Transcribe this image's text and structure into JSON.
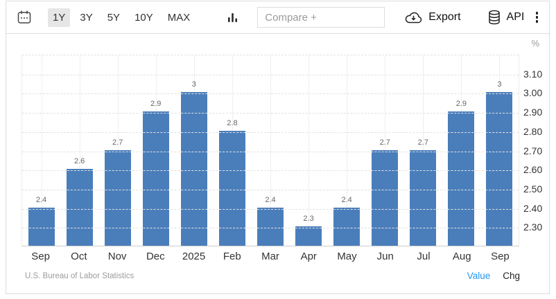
{
  "toolbar": {
    "ranges": [
      {
        "label": "1Y",
        "selected": true
      },
      {
        "label": "3Y",
        "selected": false
      },
      {
        "label": "5Y",
        "selected": false
      },
      {
        "label": "10Y",
        "selected": false
      },
      {
        "label": "MAX",
        "selected": false
      }
    ],
    "compare_placeholder": "Compare +",
    "export_label": "Export",
    "api_label": "API"
  },
  "chart_data": {
    "type": "bar",
    "title": "",
    "unit": "%",
    "categories": [
      "Sep",
      "Oct",
      "Nov",
      "Dec",
      "2025",
      "Feb",
      "Mar",
      "Apr",
      "May",
      "Jun",
      "Jul",
      "Aug",
      "Sep"
    ],
    "values": [
      2.4,
      2.6,
      2.7,
      2.9,
      3,
      2.8,
      2.4,
      2.3,
      2.4,
      2.7,
      2.7,
      2.9,
      3
    ],
    "bar_labels": [
      "2.4",
      "2.6",
      "2.7",
      "2.9",
      "3",
      "2.8",
      "2.4",
      "2.3",
      "2.4",
      "2.7",
      "2.7",
      "2.9",
      "3"
    ],
    "y_ticks": [
      "3.10",
      "3.00",
      "2.90",
      "2.80",
      "2.70",
      "2.60",
      "2.50",
      "2.40",
      "2.30"
    ],
    "ylim": [
      2.2,
      3.2
    ],
    "bar_color": "#4a7ebb",
    "grid": true,
    "legend_position": "none",
    "xlabel": "",
    "ylabel": "%"
  },
  "footer": {
    "source": "U.S. Bureau of Labor Statistics",
    "value_label": "Value",
    "chg_label": "Chg"
  }
}
